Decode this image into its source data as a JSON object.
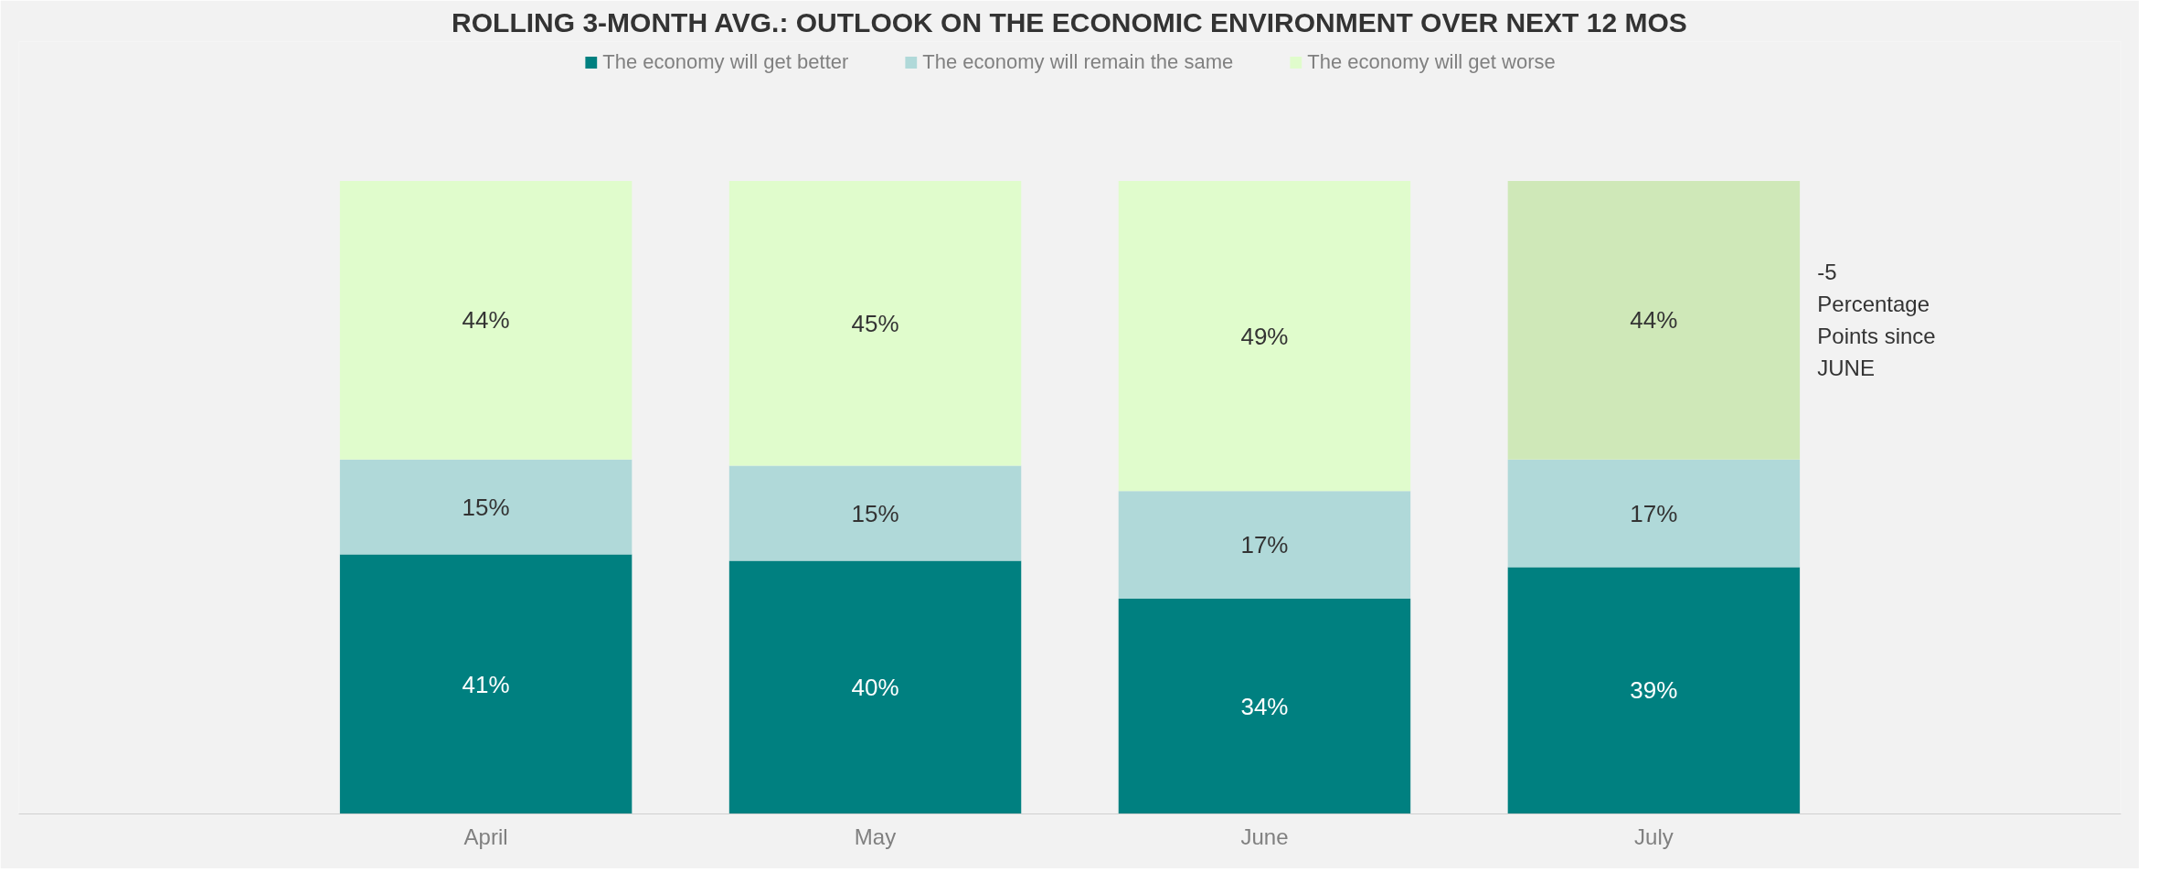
{
  "chart_data": {
    "type": "bar",
    "stacked": true,
    "title": "ROLLING 3-MONTH AVG.: OUTLOOK ON THE ECONOMIC ENVIRONMENT OVER NEXT 12 MOS",
    "categories": [
      "April",
      "May",
      "June",
      "July"
    ],
    "series": [
      {
        "name": "The economy will get better",
        "color": "#008080",
        "values": [
          41,
          40,
          34,
          39
        ],
        "value_labels": [
          "41%",
          "40%",
          "34%",
          "39%"
        ]
      },
      {
        "name": "The economy will remain the same",
        "color": "#b0d9d9",
        "values": [
          15,
          15,
          17,
          17
        ],
        "value_labels": [
          "15%",
          "15%",
          "17%",
          "17%"
        ]
      },
      {
        "name": "The economy will get worse",
        "colors": [
          "#e0fccc",
          "#e0fccc",
          "#e0fccc",
          "#cfe8b8"
        ],
        "values": [
          44,
          45,
          49,
          44
        ],
        "value_labels": [
          "44%",
          "45%",
          "49%",
          "44%"
        ]
      }
    ],
    "legend": "top",
    "grid": false,
    "annotations": [
      "-5\nPercentage\nPoints since\nJUNE"
    ]
  }
}
